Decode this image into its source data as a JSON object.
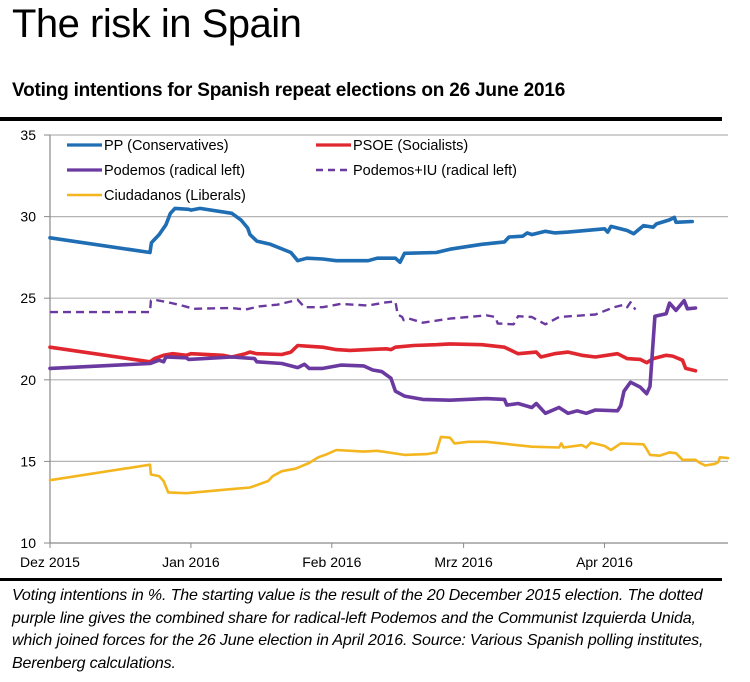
{
  "title": "The risk in Spain",
  "subtitle": "Voting intentions for Spanish repeat elections on 26 June 2016",
  "caption": "Voting intentions in %. The starting value is the result of the 20 December 2015 election. The dotted purple line gives the combined share for radical-left Podemos and the Communist Izquierda Unida, which joined forces for the 26 June election in April 2016. Source: Various Spanish polling institutes, Berenberg calculations.",
  "chart_data": {
    "type": "line",
    "title": "Voting intentions for Spanish repeat elections on 26 June 2016",
    "xlabel": "",
    "ylabel": "Voting intentions in %",
    "x_unit": "days since 1 Dec 2015",
    "xlim": [
      0,
      150
    ],
    "ylim": [
      10,
      35
    ],
    "yticks": [
      10,
      15,
      20,
      25,
      30,
      35
    ],
    "xticks": [
      {
        "value": 0,
        "label": "Dez 2015"
      },
      {
        "value": 31,
        "label": "Jan 2016"
      },
      {
        "value": 62,
        "label": "Feb 2016"
      },
      {
        "value": 91,
        "label": "Mrz 2016"
      },
      {
        "value": 122,
        "label": "Apr 2016"
      }
    ],
    "grid": "horizontal",
    "legend_position": "top",
    "series": [
      {
        "name": "PP (Conservatives)",
        "color": "#1f6db3",
        "style": "solid",
        "points": [
          [
            0,
            28.7
          ],
          [
            22,
            27.8
          ],
          [
            22.3,
            28.4
          ],
          [
            24,
            28.9
          ],
          [
            25.5,
            29.5
          ],
          [
            26.5,
            30.2
          ],
          [
            27.5,
            30.5
          ],
          [
            30.5,
            30.45
          ],
          [
            31,
            30.4
          ],
          [
            33,
            30.5
          ],
          [
            40,
            30.2
          ],
          [
            42,
            29.8
          ],
          [
            43.5,
            29.3
          ],
          [
            44,
            28.9
          ],
          [
            45.5,
            28.5
          ],
          [
            48.5,
            28.3
          ],
          [
            53,
            27.8
          ],
          [
            54.5,
            27.3
          ],
          [
            56.5,
            27.45
          ],
          [
            60,
            27.4
          ],
          [
            63,
            27.3
          ],
          [
            70,
            27.3
          ],
          [
            72,
            27.45
          ],
          [
            76,
            27.45
          ],
          [
            77,
            27.2
          ],
          [
            78,
            27.75
          ],
          [
            85,
            27.8
          ],
          [
            88,
            28.0
          ],
          [
            95,
            28.3
          ],
          [
            100,
            28.45
          ],
          [
            101,
            28.75
          ],
          [
            104,
            28.8
          ],
          [
            105,
            29.0
          ],
          [
            106,
            28.9
          ],
          [
            109,
            29.1
          ],
          [
            111,
            29.0
          ],
          [
            114,
            29.05
          ],
          [
            122,
            29.25
          ],
          [
            123,
            29.05
          ],
          [
            124,
            29.4
          ],
          [
            129,
            29.15
          ],
          [
            131,
            28.95
          ],
          [
            134,
            29.45
          ],
          [
            137,
            29.35
          ],
          [
            138,
            29.55
          ],
          [
            142,
            29.8
          ],
          [
            143.5,
            29.95
          ],
          [
            144,
            29.65
          ],
          [
            149,
            29.7
          ]
        ]
      },
      {
        "name": "PSOE (Socialists)",
        "color": "#e0262e",
        "style": "solid",
        "points": [
          [
            0,
            22.0
          ],
          [
            22,
            21.1
          ],
          [
            23,
            21.3
          ],
          [
            25,
            21.5
          ],
          [
            27,
            21.6
          ],
          [
            30,
            21.5
          ],
          [
            31,
            21.6
          ],
          [
            38,
            21.5
          ],
          [
            40,
            21.4
          ],
          [
            43,
            21.6
          ],
          [
            44,
            21.7
          ],
          [
            45.5,
            21.6
          ],
          [
            51,
            21.55
          ],
          [
            53,
            21.7
          ],
          [
            54.5,
            22.1
          ],
          [
            57,
            22.05
          ],
          [
            60,
            22.0
          ],
          [
            63,
            21.85
          ],
          [
            66,
            21.8
          ],
          [
            70,
            21.85
          ],
          [
            74,
            21.9
          ],
          [
            75,
            21.85
          ],
          [
            76,
            22.0
          ],
          [
            80,
            22.1
          ],
          [
            85,
            22.15
          ],
          [
            88,
            22.2
          ],
          [
            95,
            22.15
          ],
          [
            100,
            22.0
          ],
          [
            103,
            21.6
          ],
          [
            107,
            21.7
          ],
          [
            108,
            21.4
          ],
          [
            111,
            21.6
          ],
          [
            114,
            21.7
          ],
          [
            117,
            21.5
          ],
          [
            120,
            21.4
          ],
          [
            126,
            21.6
          ],
          [
            127,
            21.5
          ],
          [
            129,
            21.3
          ],
          [
            133,
            21.25
          ],
          [
            135,
            21.05
          ],
          [
            137,
            21.3
          ],
          [
            141,
            21.5
          ],
          [
            143,
            21.45
          ],
          [
            146,
            21.2
          ],
          [
            147,
            20.7
          ],
          [
            150,
            20.55
          ]
        ]
      },
      {
        "name": "Podemos (radical left)",
        "color": "#6a3aa0",
        "style": "solid",
        "points": [
          [
            0,
            20.7
          ],
          [
            22,
            21.0
          ],
          [
            24,
            21.2
          ],
          [
            25,
            21.1
          ],
          [
            25.5,
            21.4
          ],
          [
            30,
            21.35
          ],
          [
            30.5,
            21.25
          ],
          [
            40,
            21.4
          ],
          [
            45,
            21.3
          ],
          [
            45.5,
            21.1
          ],
          [
            51,
            21.0
          ],
          [
            54.5,
            20.75
          ],
          [
            56,
            20.95
          ],
          [
            57,
            20.7
          ],
          [
            60,
            20.7
          ],
          [
            64,
            20.9
          ],
          [
            69,
            20.85
          ],
          [
            71,
            20.6
          ],
          [
            73,
            20.5
          ],
          [
            75,
            20.1
          ],
          [
            76,
            19.3
          ],
          [
            78,
            19.0
          ],
          [
            82,
            18.8
          ],
          [
            88,
            18.75
          ],
          [
            96,
            18.85
          ],
          [
            100,
            18.8
          ],
          [
            100.5,
            18.45
          ],
          [
            103,
            18.55
          ],
          [
            106,
            18.3
          ],
          [
            107,
            18.55
          ],
          [
            109,
            17.95
          ],
          [
            112,
            18.3
          ],
          [
            114,
            17.95
          ],
          [
            116,
            18.1
          ],
          [
            118,
            17.95
          ],
          [
            120,
            18.15
          ],
          [
            126,
            18.1
          ],
          [
            127,
            18.4
          ],
          [
            128,
            19.3
          ],
          [
            130,
            19.85
          ],
          [
            133,
            19.55
          ],
          [
            135,
            19.15
          ],
          [
            136,
            19.6
          ],
          [
            137.5,
            23.9
          ],
          [
            141,
            24.05
          ],
          [
            142,
            24.7
          ],
          [
            144,
            24.25
          ],
          [
            146.5,
            24.85
          ],
          [
            147.5,
            24.35
          ],
          [
            150,
            24.4
          ]
        ]
      },
      {
        "name": "Podemos+IU (radical left)",
        "color": "#6a3aa0",
        "style": "dashed",
        "points": [
          [
            0,
            24.15
          ],
          [
            22,
            24.15
          ],
          [
            22.2,
            24.85
          ],
          [
            23,
            24.9
          ],
          [
            26,
            24.75
          ],
          [
            29,
            24.55
          ],
          [
            31,
            24.4
          ],
          [
            31.3,
            24.35
          ],
          [
            40,
            24.4
          ],
          [
            43,
            24.3
          ],
          [
            46,
            24.5
          ],
          [
            50,
            24.6
          ],
          [
            54.5,
            24.9
          ],
          [
            56,
            24.45
          ],
          [
            60,
            24.45
          ],
          [
            64,
            24.65
          ],
          [
            70,
            24.55
          ],
          [
            74,
            24.75
          ],
          [
            76,
            24.8
          ],
          [
            76.5,
            24.0
          ],
          [
            77.5,
            23.85
          ],
          [
            77.8,
            23.65
          ],
          [
            79,
            23.75
          ],
          [
            82,
            23.5
          ],
          [
            88,
            23.75
          ],
          [
            92,
            23.85
          ],
          [
            96,
            23.95
          ],
          [
            98,
            23.85
          ],
          [
            98.5,
            23.45
          ],
          [
            102,
            23.4
          ],
          [
            103,
            23.9
          ],
          [
            106,
            23.85
          ],
          [
            109,
            23.4
          ],
          [
            112,
            23.85
          ],
          [
            120,
            24.0
          ],
          [
            125,
            24.45
          ],
          [
            128,
            24.6
          ],
          [
            129,
            24.45
          ],
          [
            130,
            24.75
          ],
          [
            131.5,
            24.3
          ]
        ]
      },
      {
        "name": "Ciudadanos (Liberals)",
        "color": "#f3b61f",
        "style": "solid",
        "points": [
          [
            0,
            13.85
          ],
          [
            22,
            14.8
          ],
          [
            22.2,
            14.2
          ],
          [
            24,
            14.1
          ],
          [
            25,
            13.8
          ],
          [
            26,
            13.1
          ],
          [
            30,
            13.05
          ],
          [
            40,
            13.3
          ],
          [
            44,
            13.4
          ],
          [
            48,
            13.8
          ],
          [
            49,
            14.1
          ],
          [
            51,
            14.4
          ],
          [
            54,
            14.55
          ],
          [
            57,
            14.9
          ],
          [
            59,
            15.25
          ],
          [
            61,
            15.45
          ],
          [
            63,
            15.7
          ],
          [
            69,
            15.6
          ],
          [
            72,
            15.65
          ],
          [
            78,
            15.4
          ],
          [
            83,
            15.45
          ],
          [
            85,
            15.55
          ],
          [
            86,
            16.5
          ],
          [
            88,
            16.45
          ],
          [
            89,
            16.1
          ],
          [
            92,
            16.2
          ],
          [
            96,
            16.2
          ],
          [
            106,
            15.9
          ],
          [
            112,
            15.85
          ],
          [
            112.5,
            16.1
          ],
          [
            113,
            15.85
          ],
          [
            117,
            16.0
          ],
          [
            118,
            15.85
          ],
          [
            119,
            16.15
          ],
          [
            122,
            15.95
          ],
          [
            124,
            15.7
          ],
          [
            127,
            16.1
          ],
          [
            134,
            16.05
          ],
          [
            135,
            15.75
          ],
          [
            136,
            15.4
          ],
          [
            139,
            15.35
          ],
          [
            142,
            15.55
          ],
          [
            144,
            15.5
          ],
          [
            146,
            15.1
          ],
          [
            150,
            15.1
          ],
          [
            151,
            14.95
          ],
          [
            153,
            14.75
          ],
          [
            156,
            14.85
          ],
          [
            157,
            14.95
          ],
          [
            157.5,
            15.25
          ],
          [
            160,
            15.2
          ]
        ]
      }
    ]
  }
}
